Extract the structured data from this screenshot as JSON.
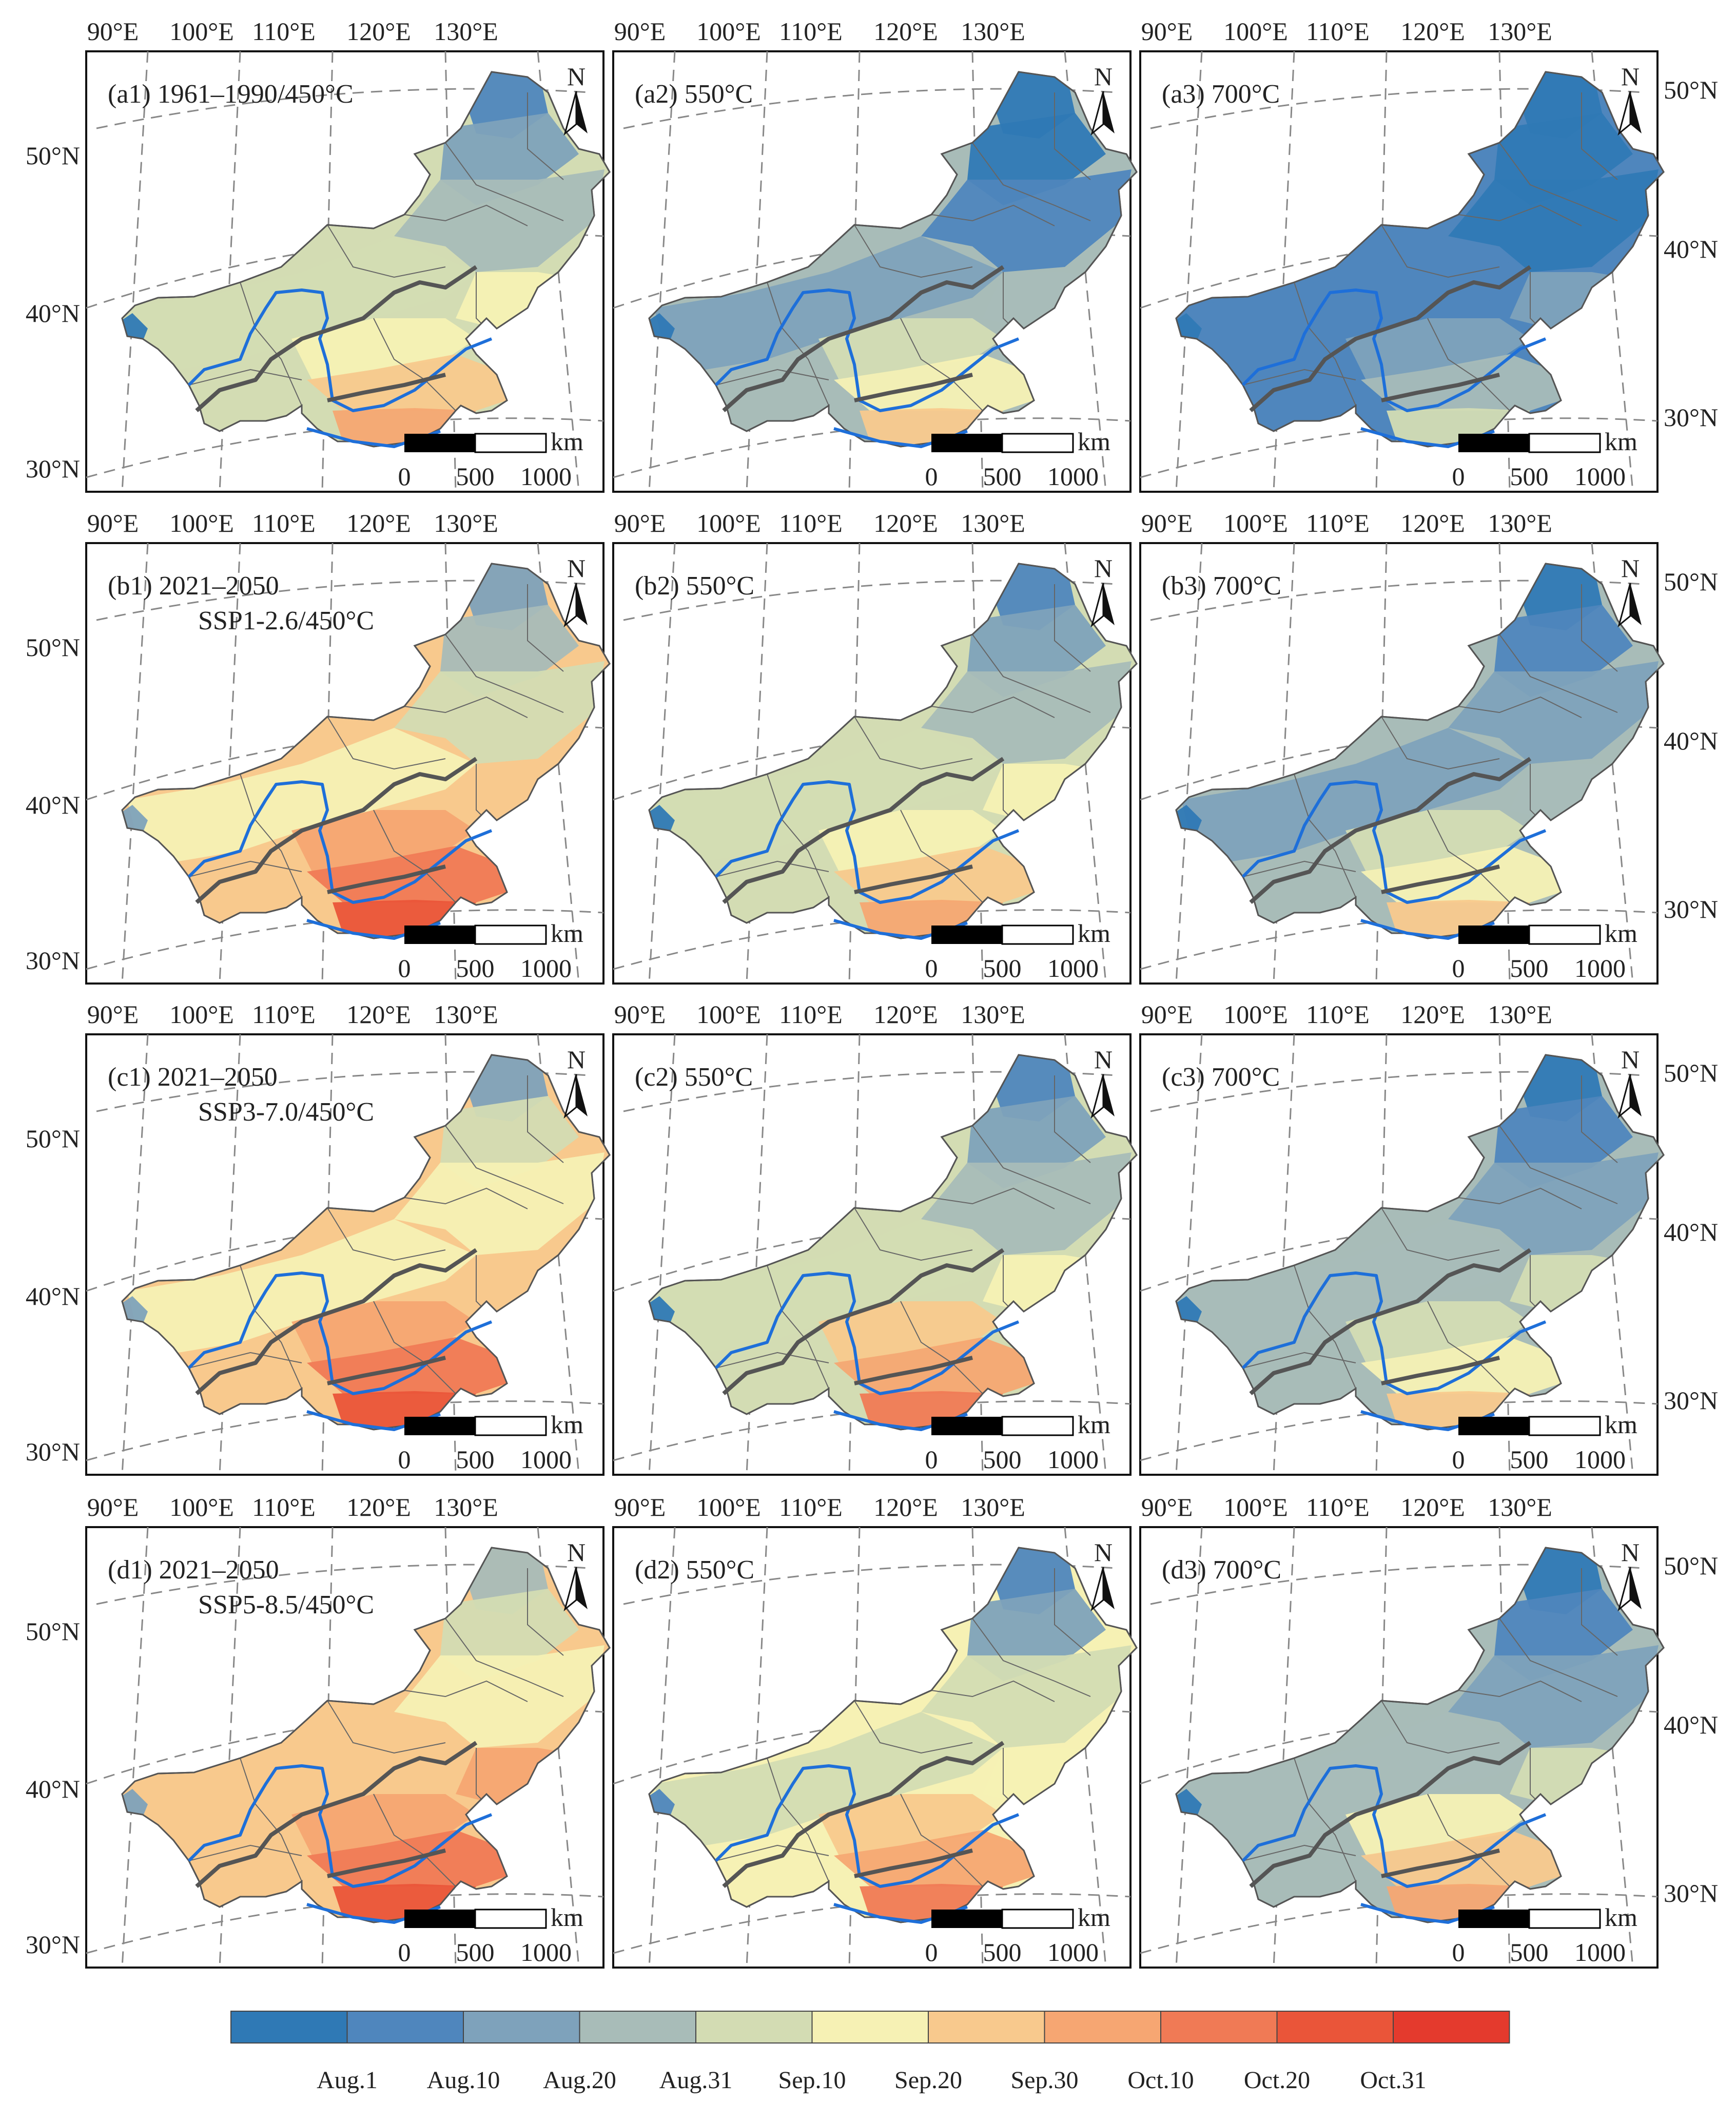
{
  "figure": {
    "lon_ticks": [
      "90°E",
      "100°E",
      "110°E",
      "120°E",
      "130°E"
    ],
    "lat_ticks_left": [
      "50°N",
      "40°N",
      "30°N"
    ],
    "lat_ticks_right": [
      "50°N",
      "40°N",
      "30°N"
    ],
    "north_label": "N",
    "scalebar": {
      "unit": "km",
      "labels": [
        "0",
        "500",
        "1000"
      ]
    },
    "panels": [
      {
        "id": "a1",
        "label": "(a1) 1961–1990/450°C",
        "label2": "",
        "shade_level": 0.4
      },
      {
        "id": "a2",
        "label": "(a2) 550°C",
        "label2": "",
        "shade_level": 0.25
      },
      {
        "id": "a3",
        "label": "(a3) 700°C",
        "label2": "",
        "shade_level": 0.12
      },
      {
        "id": "b1",
        "label": "(b1) 2021–2050",
        "label2": "SSP1-2.6/450°C",
        "shade_level": 0.55
      },
      {
        "id": "b2",
        "label": "(b2) 550°C",
        "label2": "",
        "shade_level": 0.4
      },
      {
        "id": "b3",
        "label": "(b3) 700°C",
        "label2": "",
        "shade_level": 0.28
      },
      {
        "id": "c1",
        "label": "(c1) 2021–2050",
        "label2": "SSP3-7.0/450°C",
        "shade_level": 0.58
      },
      {
        "id": "c2",
        "label": "(c2) 550°C",
        "label2": "",
        "shade_level": 0.44
      },
      {
        "id": "c3",
        "label": "(c3) 700°C",
        "label2": "",
        "shade_level": 0.3
      },
      {
        "id": "d1",
        "label": "(d1) 2021–2050",
        "label2": "SSP5-8.5/450°C",
        "shade_level": 0.62
      },
      {
        "id": "d2",
        "label": "(d2) 550°C",
        "label2": "",
        "shade_level": 0.47
      },
      {
        "id": "d3",
        "label": "(d3) 700°C",
        "label2": "",
        "shade_level": 0.33
      }
    ]
  },
  "legend": {
    "colors": [
      "#2f79b5",
      "#4f86bd",
      "#7ea2bb",
      "#a8bcb8",
      "#d3dcb3",
      "#f6f1b4",
      "#f8c98d",
      "#f6a672",
      "#f07a55",
      "#ea5539",
      "#e43a2d"
    ],
    "labels": [
      "Aug.1",
      "Aug.10",
      "Aug.20",
      "Aug.31",
      "Sep.10",
      "Sep.20",
      "Sep.30",
      "Oct.10",
      "Oct.20",
      "Oct.31"
    ]
  }
}
